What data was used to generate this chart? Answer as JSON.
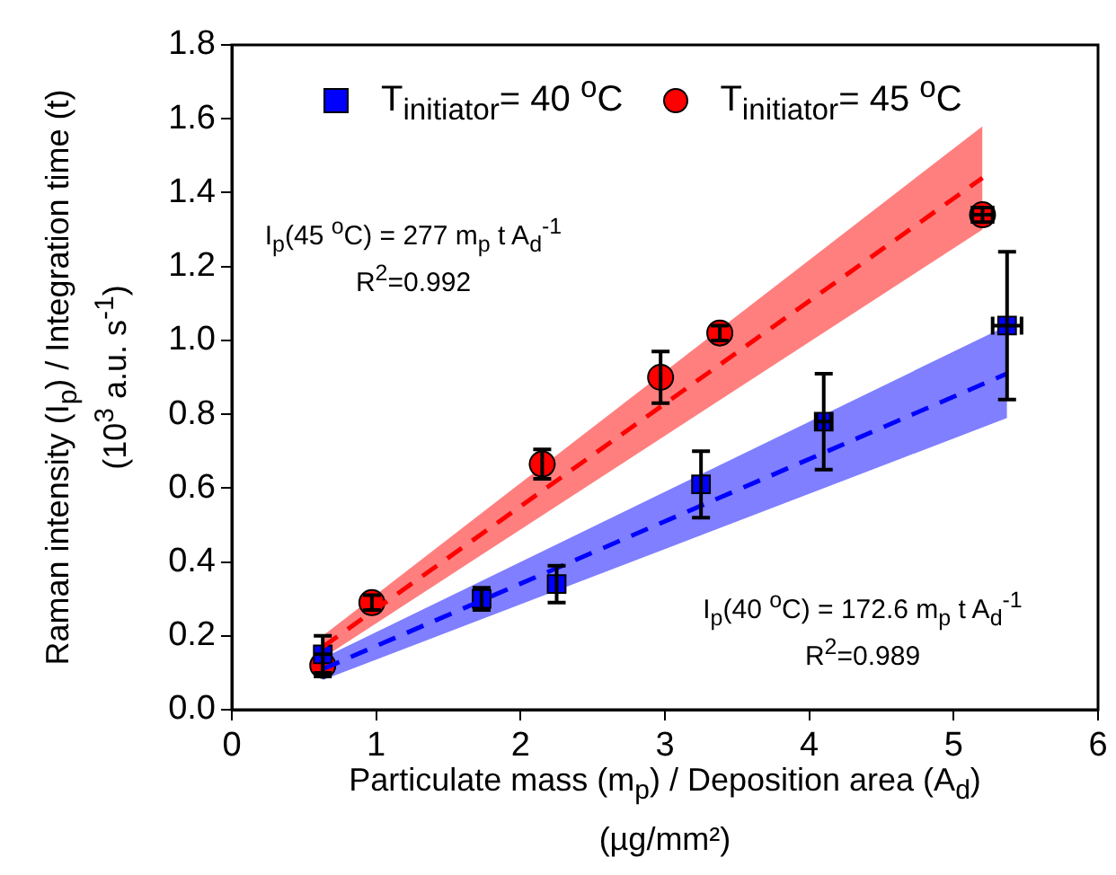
{
  "chart_data": {
    "type": "scatter",
    "xlabel": "Particulate mass (m$_{p}$) / Deposition area (A$_{d}$)\n(µg/mm²)",
    "ylabel": "Raman intensity (I$_{p}$) / Integration time (t)\n(10$^{3}$ a.u. s$^{-1}$)",
    "xlim": [
      0,
      6
    ],
    "xticks": [
      0,
      1,
      2,
      3,
      4,
      5,
      6
    ],
    "ylim": [
      0,
      1.8
    ],
    "yticks": [
      {
        "value": 0,
        "label": "0.0"
      },
      {
        "value": 0.2,
        "label": "0.2"
      },
      {
        "value": 0.4,
        "label": "0.4"
      },
      {
        "value": 0.6,
        "label": "0.6"
      },
      {
        "value": 0.8,
        "label": "0.8"
      },
      {
        "value": 1.0,
        "label": "1.0"
      },
      {
        "value": 1.2,
        "label": "1.2"
      },
      {
        "value": 1.4,
        "label": "1.4"
      },
      {
        "value": 1.6,
        "label": "1.6"
      },
      {
        "value": 1.8,
        "label": "1.8"
      }
    ],
    "grid": false,
    "legend": "top",
    "series": [
      {
        "type": "line",
        "color": "#ff0000",
        "line_style": "dashed",
        "marker": "none",
        "x": [
          0.63,
          5.2
        ],
        "values": [
          0.17,
          1.44
        ],
        "lower": [
          0.14,
          1.3
        ],
        "upper": [
          0.2,
          1.58
        ]
      },
      {
        "type": "line",
        "color": "#0000ff",
        "line_style": "dashed",
        "marker": "none",
        "x": [
          0.63,
          5.37
        ],
        "values": [
          0.11,
          0.91
        ],
        "lower": [
          0.08,
          0.79
        ],
        "upper": [
          0.14,
          1.04
        ]
      },
      {
        "name": "T$_{initiator}$= 40 $^{o}$C",
        "color": "#0000ff",
        "marker": "square",
        "x": [
          0.63,
          1.73,
          2.25,
          3.25,
          4.1,
          5.37
        ],
        "values": [
          0.15,
          0.3,
          0.34,
          0.61,
          0.78,
          1.04
        ],
        "errors": [
          0.05,
          0.03,
          0.05,
          0.09,
          0.13,
          0.2
        ],
        "xerrors": [
          null,
          null,
          null,
          null,
          0.05,
          0.1
        ]
      },
      {
        "name": "T$_{initiator}$= 45 $^{o}$C",
        "color": "#ff0000",
        "marker": "circle",
        "x": [
          0.63,
          0.97,
          2.15,
          2.97,
          3.38,
          5.2
        ],
        "values": [
          0.12,
          0.29,
          0.665,
          0.9,
          1.02,
          1.34
        ],
        "errors": [
          0.03,
          0.02,
          0.04,
          0.07,
          0.02,
          0.02
        ],
        "xerrors": [
          null,
          null,
          null,
          null,
          null,
          0.07
        ]
      }
    ],
    "annotations": [
      "I$_{p}$(45 $^{o}$C) = 277 m$_{p}$ t A$_{d}$$^{-1}$\nR$^{2}$=0.992",
      "I$_{p}$(40 $^{o}$C) = 172.6 m$_{p}$ t A$_{d}$$^{-1}$\nR$^{2}$=0.989"
    ]
  }
}
